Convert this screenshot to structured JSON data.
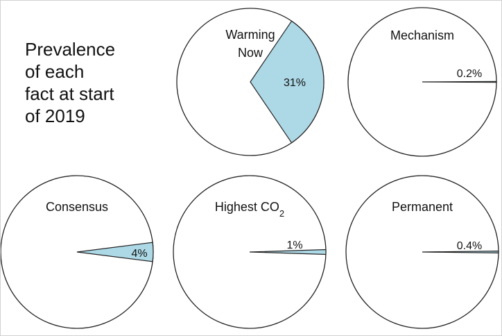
{
  "title": "Prevalence\nof each\nfact at start\nof 2019",
  "colors": {
    "slice_fill": "#add8e6",
    "slice_stroke": "#222222",
    "circle_stroke": "#222222",
    "background": "#ffffff"
  },
  "chart_data": {
    "type": "pie",
    "title": "Prevalence of each fact at start of 2019",
    "unit": "%",
    "pies": [
      {
        "name": "Warming Now",
        "name_lines": [
          "Warming",
          "Now"
        ],
        "value": 31,
        "value_label": "31%"
      },
      {
        "name": "Mechanism",
        "name_lines": [
          "Mechanism"
        ],
        "value": 0.2,
        "value_label": "0.2%"
      },
      {
        "name": "Consensus",
        "name_lines": [
          "Consensus"
        ],
        "value": 4,
        "value_label": "4%"
      },
      {
        "name": "Highest CO2",
        "name_lines": [
          "Highest CO2"
        ],
        "value": 1,
        "value_label": "1%"
      },
      {
        "name": "Permanent",
        "name_lines": [
          "Permanent"
        ],
        "value": 0.4,
        "value_label": "0.4%"
      }
    ]
  }
}
